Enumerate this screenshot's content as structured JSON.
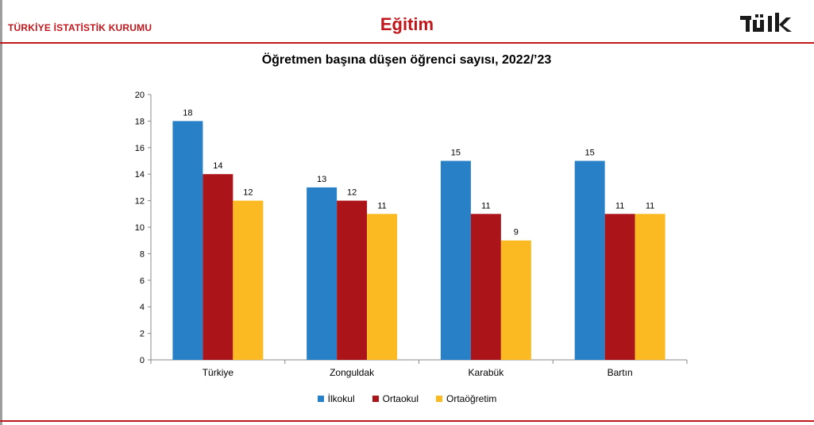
{
  "header": {
    "organization": "TÜRKİYE İSTATİSTİK KURUMU",
    "section_title": "Eğitim",
    "logo_text": "TÜİK",
    "brand_color": "#c0171c"
  },
  "chart_data": {
    "type": "bar",
    "title": "Öğretmen başına düşen öğrenci sayısı, 2022/’23",
    "xlabel": "",
    "ylabel": "",
    "categories": [
      "Türkiye",
      "Zonguldak",
      "Karabük",
      "Bartın"
    ],
    "series": [
      {
        "name": "İlkokul",
        "color": "#2880c6",
        "values": [
          18,
          13,
          15,
          15
        ]
      },
      {
        "name": "Ortaokul",
        "color": "#ab1519",
        "values": [
          14,
          12,
          11,
          11
        ]
      },
      {
        "name": "Ortaöğretim",
        "color": "#fbba21",
        "values": [
          12,
          11,
          9,
          11
        ]
      }
    ],
    "ylim": [
      0,
      20
    ],
    "yticks": [
      0,
      2,
      4,
      6,
      8,
      10,
      12,
      14,
      16,
      18,
      20
    ],
    "grid": false,
    "legend_position": "bottom",
    "data_labels": true
  }
}
